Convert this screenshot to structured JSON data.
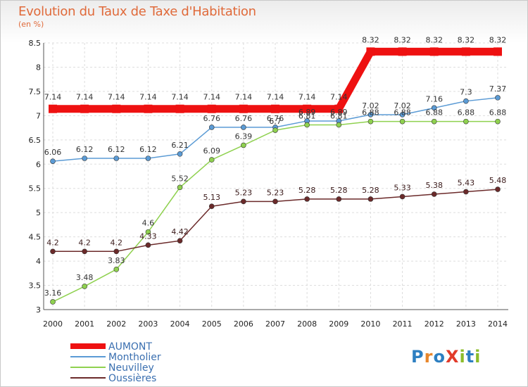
{
  "chart_data": {
    "type": "line",
    "title": "Evolution du Taux de Taxe d'Habitation",
    "subtitle": "(en %)",
    "xlabel": "",
    "ylabel": "",
    "ylim": [
      3,
      8.5
    ],
    "yticks": [
      "3",
      "3.5",
      "4",
      "4.5",
      "5",
      "5.5",
      "6",
      "6.5",
      "7",
      "7.5",
      "8",
      "8.5"
    ],
    "categories": [
      "2000",
      "2001",
      "2002",
      "2003",
      "2004",
      "2005",
      "2006",
      "2007",
      "2008",
      "2009",
      "2010",
      "2011",
      "2012",
      "2013",
      "2014"
    ],
    "series": [
      {
        "name": "AUMONT",
        "color": "#ee1111",
        "values": [
          7.14,
          7.14,
          7.14,
          7.14,
          7.14,
          7.14,
          7.14,
          7.14,
          7.14,
          7.14,
          8.32,
          8.32,
          8.32,
          8.32,
          8.32
        ],
        "labels": [
          "7.14",
          "7.14",
          "7.14",
          "7.14",
          "7.14",
          "7.14",
          "7.14",
          "7.14",
          "7.14",
          "7.14",
          "8.32",
          "8.32",
          "8.32",
          "8.32",
          "8.32"
        ]
      },
      {
        "name": "Montholier",
        "color": "#5b9bd5",
        "values": [
          6.06,
          6.12,
          6.12,
          6.12,
          6.21,
          6.76,
          6.76,
          6.76,
          6.89,
          6.89,
          7.02,
          7.02,
          7.16,
          7.3,
          7.37
        ],
        "labels": [
          "6.06",
          "6.12",
          "6.12",
          "6.12",
          "6.21",
          "6.76",
          "6.76",
          "6.76",
          "6.89",
          "6.89",
          "7.02",
          "7.02",
          "7.16",
          "7.3",
          "7.37"
        ]
      },
      {
        "name": "Neuvilley",
        "color": "#8fd14f",
        "values": [
          3.16,
          3.48,
          3.83,
          4.6,
          5.52,
          6.09,
          6.39,
          6.7,
          6.81,
          6.81,
          6.88,
          6.88,
          6.88,
          6.88,
          6.88
        ],
        "labels": [
          "3.16",
          "3.48",
          "3.83",
          "4.6",
          "5.52",
          "6.09",
          "6.39",
          "6.7",
          "6.81",
          "6.81",
          "6.88",
          "6.88",
          "6.88",
          "6.88",
          "6.88"
        ]
      },
      {
        "name": "Oussières",
        "color": "#6b2a2a",
        "values": [
          4.2,
          4.2,
          4.2,
          4.33,
          4.42,
          5.13,
          5.23,
          5.23,
          5.28,
          5.28,
          5.28,
          5.33,
          5.38,
          5.43,
          5.48
        ],
        "labels": [
          "4.2",
          "4.2",
          "4.2",
          "4.33",
          "4.42",
          "5.13",
          "5.23",
          "5.23",
          "5.28",
          "5.28",
          "5.28",
          "5.33",
          "5.38",
          "5.43",
          "5.48"
        ]
      }
    ],
    "legend_position": "bottom-left",
    "grid": true
  },
  "brand": {
    "text": "ProXiti",
    "letters": [
      "P",
      "r",
      "o",
      "X",
      "i",
      "t",
      "i"
    ]
  }
}
